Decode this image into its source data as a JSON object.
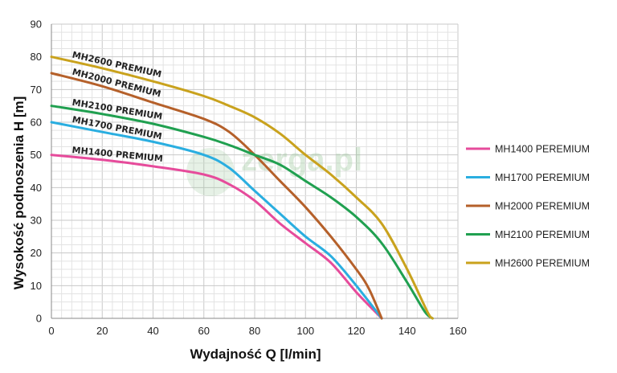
{
  "chart_data": {
    "type": "line",
    "xlabel": "Wydajność Q [l/min]",
    "ylabel": "Wysokość podnoszenia H [m]",
    "xlim": [
      0,
      160
    ],
    "ylim": [
      0,
      90
    ],
    "x_ticks": [
      "0",
      "20",
      "40",
      "60",
      "80",
      "100",
      "120",
      "140",
      "160"
    ],
    "y_ticks": [
      "0",
      "10",
      "20",
      "30",
      "40",
      "50",
      "60",
      "70",
      "80",
      "90"
    ],
    "grid": true,
    "legend_position": "right",
    "watermark": "zerga.pl",
    "series": [
      {
        "name": "MH1400 PEREMIUM",
        "curve_label": "MH1400 PREMIUM",
        "color": "#e64b9b",
        "x": [
          0,
          20,
          40,
          60,
          70,
          80,
          90,
          100,
          110,
          120,
          130
        ],
        "y": [
          50,
          48.5,
          46.5,
          44,
          41,
          36,
          29,
          23,
          17,
          8,
          0
        ]
      },
      {
        "name": "MH1700 PEREMIUM",
        "curve_label": "MH1700 PREMIUM",
        "color": "#2aaee0",
        "x": [
          0,
          20,
          40,
          60,
          70,
          80,
          90,
          100,
          110,
          120,
          130
        ],
        "y": [
          60,
          57,
          54,
          50,
          46,
          39,
          32,
          25,
          19,
          10,
          0
        ]
      },
      {
        "name": "MH2000 PEREMIUM",
        "curve_label": "MH2000 PREMIUM",
        "color": "#b5602a",
        "x": [
          0,
          20,
          40,
          60,
          70,
          80,
          90,
          100,
          110,
          120,
          125,
          130
        ],
        "y": [
          75,
          71,
          66,
          61,
          57,
          50,
          42,
          34,
          25,
          15,
          9,
          0
        ]
      },
      {
        "name": "MH2100 PEREMIUM",
        "curve_label": "MH2100 PREMIUM",
        "color": "#20a050",
        "x": [
          0,
          20,
          40,
          60,
          70,
          80,
          90,
          100,
          110,
          120,
          130,
          140,
          147,
          150
        ],
        "y": [
          65,
          62.5,
          59.5,
          55.5,
          53,
          50,
          47,
          42,
          37,
          31,
          23,
          11,
          2,
          0
        ]
      },
      {
        "name": "MH2600 PEREMIUM",
        "curve_label": "MH2600 PREMIUM",
        "color": "#c9a21d",
        "x": [
          0,
          20,
          40,
          60,
          70,
          80,
          90,
          100,
          110,
          120,
          130,
          140,
          148,
          150
        ],
        "y": [
          80,
          76.5,
          72.5,
          68,
          65,
          61.5,
          56.5,
          50,
          44,
          37,
          29,
          15,
          2,
          0
        ]
      }
    ]
  }
}
